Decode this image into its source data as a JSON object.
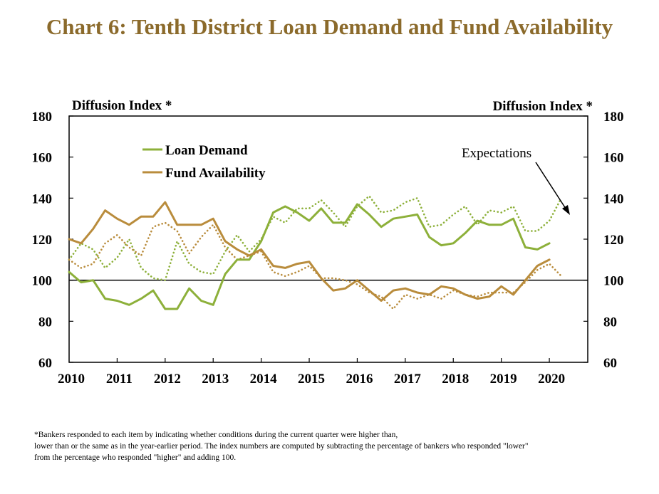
{
  "title": "Chart 6: Tenth District Loan Demand and Fund Availability",
  "footnote": [
    "*Bankers responded to each item by indicating whether conditions during the current quarter were higher than,",
    "lower than or the same as in the year-earlier period.  The index numbers are computed by subtracting the percentage of bankers who responded \"lower\"",
    "from the percentage who responded \"higher\" and adding 100."
  ],
  "chart_data": {
    "type": "line",
    "ylabel_left": "Diffusion Index *",
    "ylabel_right": "Diffusion Index *",
    "ylim": [
      60,
      180
    ],
    "yticks": [
      60,
      80,
      100,
      120,
      140,
      160,
      180
    ],
    "xlim": [
      2010,
      2020.8
    ],
    "xticks": [
      "2010",
      "2011",
      "2012",
      "2013",
      "2014",
      "2015",
      "2016",
      "2017",
      "2018",
      "2019",
      "2020"
    ],
    "grid": false,
    "legend_position": "top-left",
    "annotation": "Expectations",
    "colors": {
      "loan": "#8DB03A",
      "fund": "#B98C3C",
      "reference": "#000000"
    },
    "series": [
      {
        "name": "Loan Demand",
        "style": "solid",
        "x": [
          2010.0,
          2010.25,
          2010.5,
          2010.75,
          2011.0,
          2011.25,
          2011.5,
          2011.75,
          2012.0,
          2012.25,
          2012.5,
          2012.75,
          2013.0,
          2013.25,
          2013.5,
          2013.75,
          2014.0,
          2014.25,
          2014.5,
          2014.75,
          2015.0,
          2015.25,
          2015.5,
          2015.75,
          2016.0,
          2016.25,
          2016.5,
          2016.75,
          2017.0,
          2017.25,
          2017.5,
          2017.75,
          2018.0,
          2018.25,
          2018.5,
          2018.75,
          2019.0,
          2019.25,
          2019.5,
          2019.75,
          2020.0
        ],
        "values": [
          104,
          99,
          100,
          91,
          90,
          88,
          91,
          95,
          86,
          86,
          96,
          90,
          88,
          103,
          110,
          110,
          119,
          133,
          136,
          133,
          129,
          135,
          128,
          128,
          137,
          132,
          126,
          130,
          131,
          132,
          121,
          117,
          118,
          123,
          129,
          127,
          127,
          130,
          116,
          115,
          118
        ]
      },
      {
        "name": "Fund Availability",
        "style": "solid",
        "x": [
          2010.0,
          2010.25,
          2010.5,
          2010.75,
          2011.0,
          2011.25,
          2011.5,
          2011.75,
          2012.0,
          2012.25,
          2012.5,
          2012.75,
          2013.0,
          2013.25,
          2013.5,
          2013.75,
          2014.0,
          2014.25,
          2014.5,
          2014.75,
          2015.0,
          2015.25,
          2015.5,
          2015.75,
          2016.0,
          2016.25,
          2016.5,
          2016.75,
          2017.0,
          2017.25,
          2017.5,
          2017.75,
          2018.0,
          2018.25,
          2018.5,
          2018.75,
          2019.0,
          2019.25,
          2019.5,
          2019.75,
          2020.0
        ],
        "values": [
          120,
          118,
          125,
          134,
          130,
          127,
          131,
          131,
          138,
          127,
          127,
          127,
          130,
          119,
          115,
          112,
          115,
          107,
          106,
          108,
          109,
          101,
          95,
          96,
          100,
          95,
          90,
          95,
          96,
          94,
          93,
          97,
          96,
          93,
          91,
          92,
          97,
          93,
          100,
          107,
          110
        ]
      },
      {
        "name": "Loan Demand Expectations",
        "style": "dotted",
        "x": [
          2010.0,
          2010.25,
          2010.5,
          2010.75,
          2011.0,
          2011.25,
          2011.5,
          2011.75,
          2012.0,
          2012.25,
          2012.5,
          2012.75,
          2013.0,
          2013.25,
          2013.5,
          2013.75,
          2014.0,
          2014.25,
          2014.5,
          2014.75,
          2015.0,
          2015.25,
          2015.5,
          2015.75,
          2016.0,
          2016.25,
          2016.5,
          2016.75,
          2017.0,
          2017.25,
          2017.5,
          2017.75,
          2018.0,
          2018.25,
          2018.5,
          2018.75,
          2019.0,
          2019.25,
          2019.5,
          2019.75,
          2020.0,
          2020.25
        ],
        "values": [
          110,
          118,
          115,
          106,
          111,
          120,
          106,
          101,
          100,
          119,
          108,
          104,
          103,
          114,
          122,
          114,
          120,
          131,
          128,
          135,
          135,
          139,
          133,
          126,
          136,
          141,
          133,
          134,
          138,
          140,
          126,
          127,
          132,
          136,
          127,
          134,
          133,
          136,
          124,
          124,
          129,
          140
        ]
      },
      {
        "name": "Fund Availability Expectations",
        "style": "dotted",
        "x": [
          2010.0,
          2010.25,
          2010.5,
          2010.75,
          2011.0,
          2011.25,
          2011.5,
          2011.75,
          2012.0,
          2012.25,
          2012.5,
          2012.75,
          2013.0,
          2013.25,
          2013.5,
          2013.75,
          2014.0,
          2014.25,
          2014.5,
          2014.75,
          2015.0,
          2015.25,
          2015.5,
          2015.75,
          2016.0,
          2016.25,
          2016.5,
          2016.75,
          2017.0,
          2017.25,
          2017.5,
          2017.75,
          2018.0,
          2018.25,
          2018.5,
          2018.75,
          2019.0,
          2019.25,
          2019.5,
          2019.75,
          2020.0,
          2020.25
        ],
        "values": [
          110,
          106,
          108,
          118,
          122,
          116,
          112,
          126,
          128,
          124,
          113,
          121,
          127,
          116,
          110,
          112,
          114,
          104,
          102,
          104,
          107,
          101,
          101,
          100,
          98,
          94,
          92,
          86,
          93,
          91,
          93,
          91,
          95,
          93,
          92,
          94,
          94,
          94,
          99,
          105,
          108,
          102
        ]
      }
    ]
  }
}
